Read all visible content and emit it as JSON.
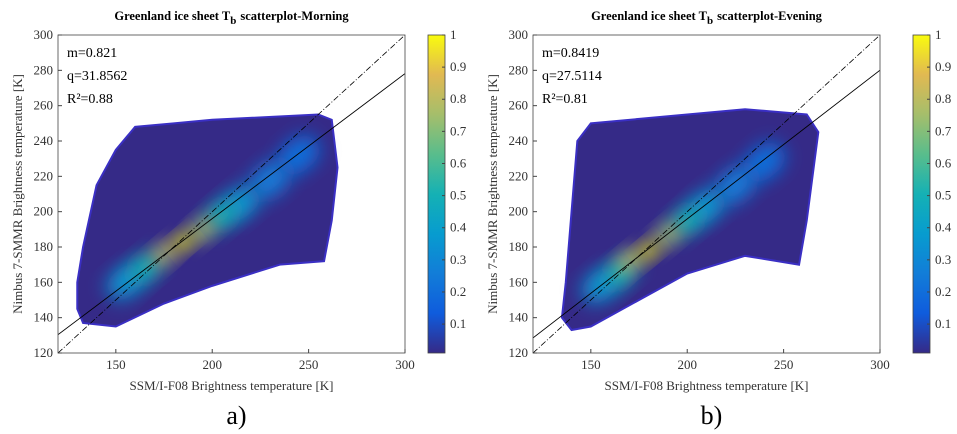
{
  "chart_data": [
    {
      "type": "scatter",
      "title": [
        "Greenland ice sheet T",
        "b",
        "scatterplot-Morning"
      ],
      "xlabel": "SSM/I-F08 Brightness temperature [K]",
      "ylabel": "Nimbus 7-SMMR Brightness temperature [K]",
      "panel_label": "a)",
      "xlim": [
        120,
        300
      ],
      "xticks": [
        150,
        200,
        250,
        300
      ],
      "ylim": [
        120,
        300
      ],
      "yticks": [
        120,
        140,
        160,
        180,
        200,
        220,
        240,
        260,
        280,
        300
      ],
      "fit": {
        "slope": 0.821,
        "intercept": 31.8562,
        "labels": [
          "m=0.821",
          "q=31.8562",
          "R²=0.88"
        ]
      },
      "envelope": {
        "x": [
          130,
          133,
          150,
          175,
          200,
          235,
          258,
          262,
          265,
          262,
          255,
          200,
          180,
          160,
          150,
          140,
          133,
          130
        ],
        "y": [
          145,
          137,
          135,
          148,
          158,
          170,
          172,
          195,
          225,
          252,
          255,
          252,
          250,
          248,
          235,
          215,
          180,
          160
        ]
      },
      "density_points": {
        "x": [
          245,
          230,
          215,
          155,
          205,
          165,
          195,
          175,
          185
        ],
        "y": [
          232,
          218,
          205,
          160,
          198,
          168,
          190,
          176,
          183
        ],
        "density": [
          0.2,
          0.25,
          0.35,
          0.35,
          0.5,
          0.5,
          0.75,
          0.8,
          1
        ]
      },
      "clim": [
        0.01,
        1
      ],
      "colorbar_ticks": [
        0.1,
        0.2,
        0.3,
        0.4,
        0.5,
        0.6,
        0.7,
        0.8,
        0.9,
        1
      ],
      "colormap": [
        "#352a87",
        "#0f5cdd",
        "#127dd8",
        "#079ccf",
        "#15b1b4",
        "#59bd8c",
        "#a5be6b",
        "#e1b952",
        "#f9fb0e"
      ]
    },
    {
      "type": "scatter",
      "title": [
        "Greenland ice sheet T",
        "b",
        "scatterplot-Evening"
      ],
      "xlabel": "SSM/I-F08 Brightness temperature [K]",
      "ylabel": "Nimbus 7-SMMR Brightness temperature [K]",
      "panel_label": "b)",
      "xlim": [
        120,
        300
      ],
      "xticks": [
        150,
        200,
        250,
        300
      ],
      "ylim": [
        120,
        300
      ],
      "yticks": [
        120,
        140,
        160,
        180,
        200,
        220,
        240,
        260,
        280,
        300
      ],
      "fit": {
        "slope": 0.8419,
        "intercept": 27.5114,
        "labels": [
          "m=0.8419",
          "q=27.5114",
          "R²=0.81"
        ]
      },
      "envelope": {
        "x": [
          135,
          140,
          150,
          175,
          200,
          230,
          258,
          262,
          268,
          262,
          230,
          200,
          150,
          143,
          140,
          137
        ],
        "y": [
          140,
          133,
          135,
          150,
          165,
          175,
          170,
          195,
          245,
          255,
          258,
          255,
          250,
          240,
          200,
          160
        ]
      },
      "density_points": {
        "x": [
          240,
          225,
          210,
          155,
          200,
          165,
          190,
          170,
          180
        ],
        "y": [
          228,
          215,
          203,
          158,
          195,
          165,
          187,
          172,
          178
        ],
        "density": [
          0.2,
          0.25,
          0.35,
          0.35,
          0.5,
          0.5,
          0.75,
          0.8,
          1
        ]
      },
      "clim": [
        0.01,
        1
      ],
      "colorbar_ticks": [
        0.1,
        0.2,
        0.3,
        0.4,
        0.5,
        0.6,
        0.7,
        0.8,
        0.9,
        1
      ],
      "colormap": [
        "#352a87",
        "#0f5cdd",
        "#127dd8",
        "#079ccf",
        "#15b1b4",
        "#59bd8c",
        "#a5be6b",
        "#e1b952",
        "#f9fb0e"
      ]
    }
  ]
}
